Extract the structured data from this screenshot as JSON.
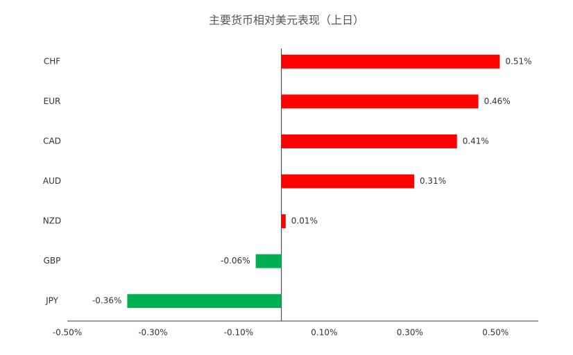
{
  "chart_data": {
    "type": "bar",
    "orientation": "horizontal",
    "title": "主要货币相对美元表现（上日）",
    "categories": [
      "CHF",
      "EUR",
      "CAD",
      "AUD",
      "NZD",
      "GBP",
      "JPY"
    ],
    "values": [
      0.51,
      0.46,
      0.41,
      0.31,
      0.01,
      -0.06,
      -0.36
    ],
    "value_labels": [
      "0.51%",
      "0.46%",
      "0.41%",
      "0.31%",
      "0.01%",
      "-0.06%",
      "-0.36%"
    ],
    "colors": [
      "#ff0000",
      "#ff0000",
      "#ff0000",
      "#ff0000",
      "#ff0000",
      "#00b050",
      "#00b050"
    ],
    "xlim": [
      -0.5,
      0.6
    ],
    "xticks": [
      {
        "value": -0.5,
        "label": "-0.50%"
      },
      {
        "value": -0.3,
        "label": "-0.30%"
      },
      {
        "value": -0.1,
        "label": "-0.10%"
      },
      {
        "value": 0.1,
        "label": "0.10%"
      },
      {
        "value": 0.3,
        "label": "0.30%"
      },
      {
        "value": 0.5,
        "label": "0.50%"
      }
    ],
    "grid": false
  }
}
